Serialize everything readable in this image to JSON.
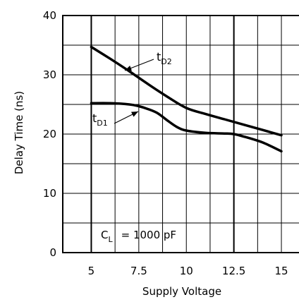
{
  "chart_data": {
    "type": "line",
    "title": "",
    "xlabel": "Supply Voltage",
    "ylabel": "Delay Time (ns)",
    "xlim": [
      3.5,
      16
    ],
    "ylim": [
      0,
      40
    ],
    "xticks": [
      5,
      7.5,
      10,
      12.5,
      15
    ],
    "xtick_labels": [
      "5",
      "7.5",
      "10",
      "12.5",
      "15"
    ],
    "yticks": [
      0,
      10,
      20,
      30,
      40
    ],
    "ytick_labels": [
      "0",
      "10",
      "20",
      "30",
      "40"
    ],
    "grid": true,
    "series": [
      {
        "name": "tD2",
        "x": [
          5,
          6,
          7,
          8,
          9,
          10,
          11,
          12,
          13,
          14,
          15
        ],
        "y": [
          34.7,
          32.7,
          30.6,
          28.4,
          26.3,
          24.4,
          23.4,
          22.5,
          21.6,
          20.7,
          19.8
        ]
      },
      {
        "name": "tD1",
        "x": [
          5,
          6,
          7,
          7.5,
          8,
          8.5,
          9,
          9.5,
          10,
          11,
          12,
          12.5,
          13,
          14,
          15
        ],
        "y": [
          25.2,
          25.2,
          25.0,
          24.7,
          24.2,
          23.5,
          22.3,
          21.2,
          20.6,
          20.2,
          20.1,
          20.0,
          19.6,
          18.6,
          17.1
        ]
      }
    ],
    "annotations": [
      {
        "label_main": "t",
        "label_sub": "D2",
        "series": "tD2"
      },
      {
        "label_main": "t",
        "label_sub": "D1",
        "series": "tD1"
      }
    ],
    "condition_label": "C",
    "condition_sub": "L",
    "condition_value": "= 1000 pF"
  }
}
